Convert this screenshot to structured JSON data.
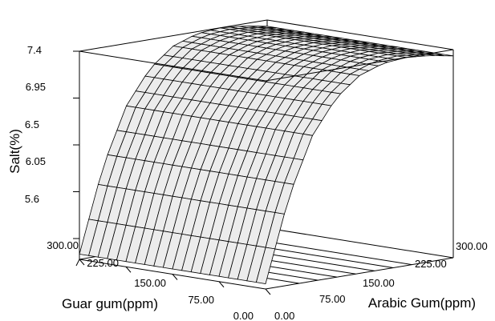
{
  "chart_data": {
    "type": "surface",
    "title": "",
    "zlabel": "Salt(%)",
    "xlabel": "Arabic Gum(ppm)",
    "ylabel": "Guar gum(ppm)",
    "xlim": [
      0,
      300
    ],
    "ylim": [
      0,
      300
    ],
    "zlim": [
      5.6,
      7.4
    ],
    "x_ticks": [
      "0.00",
      "75.00",
      "150.00",
      "225.00",
      "300.00"
    ],
    "y_ticks": [
      "0.00",
      "75.00",
      "150.00",
      "225.00",
      "300.00"
    ],
    "z_ticks": [
      "5.6",
      "6.05",
      "6.5",
      "6.95",
      "7.4"
    ],
    "grid_divisions": 20,
    "guar_gum": [
      0,
      37.5,
      75,
      112.5,
      150,
      187.5,
      225,
      262.5,
      300
    ],
    "salt_vs_guar_gum": [
      5.45,
      6.25,
      6.8,
      7.12,
      7.3,
      7.38,
      7.4,
      7.38,
      7.34
    ],
    "salt_vs_arabic_gum": [
      [
        0,
        0.0
      ],
      [
        300,
        0.0
      ]
    ],
    "surface_color": "#ececec",
    "line_color": "#000000"
  }
}
